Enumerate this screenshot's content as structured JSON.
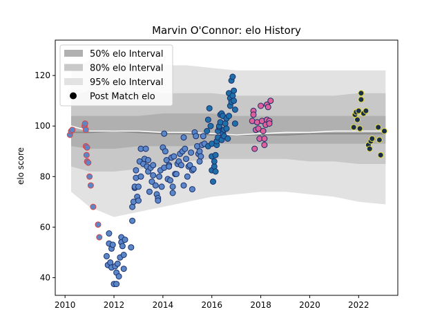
{
  "chart_data": {
    "type": "scatter",
    "title": "Marvin O'Connor: elo History",
    "xlabel": "",
    "ylabel": "elo score",
    "xlim": [
      2009.6,
      2023.6
    ],
    "ylim": [
      33,
      134
    ],
    "xticks": [
      2010,
      2012,
      2014,
      2016,
      2018,
      2020,
      2022
    ],
    "yticks": [
      40,
      60,
      80,
      100,
      120
    ],
    "grid": false,
    "legend_position": "top-left",
    "legend": [
      {
        "label": "50% elo Interval",
        "kind": "band50"
      },
      {
        "label": "80% elo Interval",
        "kind": "band80"
      },
      {
        "label": "95% elo Interval",
        "kind": "band95"
      },
      {
        "label": "Post Match elo",
        "kind": "marker"
      }
    ],
    "colors": {
      "band50": "#b0b0b0",
      "band80": "#c8c8c8",
      "band95": "#e2e2e2",
      "median_line": "#888888",
      "mean_line": "#ffffff",
      "marker_fill": "#5b87c8",
      "marker_fill_2016": "#1f6fa8",
      "marker_fill_2018": "#e0609a",
      "marker_fill_2022": "#1a2e4a"
    },
    "bands": {
      "x": [
        2010.25,
        2011,
        2012,
        2013,
        2014,
        2015,
        2016,
        2017,
        2018,
        2019,
        2020,
        2021,
        2022,
        2023.1
      ],
      "p95_low": [
        74,
        68,
        64,
        66,
        68,
        70,
        72,
        73,
        74,
        74,
        73,
        72,
        70,
        69
      ],
      "p80_low": [
        84,
        82,
        82,
        83,
        84,
        86,
        87,
        87,
        87,
        87,
        86,
        86,
        85,
        85
      ],
      "p50_low": [
        92,
        91,
        91,
        92,
        92,
        92,
        93,
        93,
        93,
        93,
        93,
        93,
        93,
        93
      ],
      "p50_high": [
        104,
        104,
        104,
        104,
        105,
        105,
        105,
        104,
        104,
        104,
        104,
        104,
        104,
        104
      ],
      "p80_high": [
        112,
        114,
        114,
        114,
        113,
        113,
        113,
        112,
        112,
        112,
        112,
        112,
        113,
        113
      ],
      "p95_high": [
        123,
        126,
        126,
        125,
        124,
        124,
        123,
        122,
        122,
        122,
        122,
        122,
        122,
        122
      ],
      "median": [
        97.5,
        97.5,
        98,
        97.5,
        97,
        97,
        96.5,
        96.5,
        96.5,
        96.5,
        97,
        97,
        97,
        97
      ],
      "mean": [
        100,
        98,
        98,
        98,
        97.5,
        97.5,
        97,
        96.5,
        97,
        97.5,
        97.5,
        98,
        98,
        98
      ]
    },
    "series": [
      {
        "group": "2010",
        "edge": "#e04040",
        "fill": "#5b87c8",
        "points": [
          [
            2010.2,
            96.5
          ],
          [
            2010.25,
            98.0
          ],
          [
            2010.3,
            98.5
          ],
          [
            2010.8,
            100.0
          ],
          [
            2010.82,
            101.0
          ],
          [
            2010.85,
            98.5
          ],
          [
            2010.85,
            92.0
          ],
          [
            2010.9,
            91.5
          ],
          [
            2010.88,
            88.5
          ],
          [
            2010.9,
            86.0
          ],
          [
            2010.95,
            85.5
          ],
          [
            2011.0,
            80.0
          ],
          [
            2011.05,
            76.5
          ],
          [
            2011.15,
            68.0
          ],
          [
            2011.35,
            61.0
          ],
          [
            2011.4,
            56.0
          ]
        ]
      },
      {
        "group": "2012-2015",
        "edge": "#1a2e6a",
        "fill": "#5b87c8",
        "points": [
          [
            2011.7,
            48.5
          ],
          [
            2011.75,
            45.0
          ],
          [
            2011.8,
            57.5
          ],
          [
            2011.8,
            53.5
          ],
          [
            2011.85,
            46.0
          ],
          [
            2011.9,
            44.0
          ],
          [
            2011.9,
            51.5
          ],
          [
            2011.95,
            53.0
          ],
          [
            2012.0,
            37.5
          ],
          [
            2012.05,
            44.5
          ],
          [
            2012.1,
            37.5
          ],
          [
            2012.1,
            42.0
          ],
          [
            2012.15,
            45.5
          ],
          [
            2012.2,
            40.5
          ],
          [
            2012.25,
            48.0
          ],
          [
            2012.3,
            56.0
          ],
          [
            2012.3,
            54.0
          ],
          [
            2012.35,
            52.5
          ],
          [
            2012.4,
            49.0
          ],
          [
            2012.4,
            43.5
          ],
          [
            2012.45,
            55.0
          ],
          [
            2012.7,
            52.0
          ],
          [
            2012.75,
            62.5
          ],
          [
            2012.75,
            68.0
          ],
          [
            2012.8,
            70.0
          ],
          [
            2012.85,
            75.5
          ],
          [
            2012.85,
            76.0
          ],
          [
            2012.9,
            82.5
          ],
          [
            2012.9,
            79.5
          ],
          [
            2012.95,
            72.0
          ],
          [
            2013.0,
            70.5
          ],
          [
            2013.0,
            76.0
          ],
          [
            2013.05,
            86.0
          ],
          [
            2013.1,
            91.0
          ],
          [
            2013.1,
            80.0
          ],
          [
            2013.2,
            85.0
          ],
          [
            2013.25,
            87.0
          ],
          [
            2013.3,
            91.0
          ],
          [
            2013.35,
            84.0
          ],
          [
            2013.4,
            86.5
          ],
          [
            2013.4,
            82.0
          ],
          [
            2013.45,
            74.0
          ],
          [
            2013.5,
            83.5
          ],
          [
            2013.55,
            78.0
          ],
          [
            2013.6,
            80.5
          ],
          [
            2013.6,
            84.5
          ],
          [
            2013.7,
            76.5
          ],
          [
            2013.75,
            73.0
          ],
          [
            2013.8,
            71.5
          ],
          [
            2013.8,
            70.5
          ],
          [
            2013.85,
            80.0
          ],
          [
            2013.9,
            82.5
          ],
          [
            2013.95,
            76.0
          ],
          [
            2014.0,
            91.5
          ],
          [
            2014.05,
            83.5
          ],
          [
            2014.05,
            97.0
          ],
          [
            2014.1,
            90.0
          ],
          [
            2014.15,
            86.5
          ],
          [
            2014.2,
            79.0
          ],
          [
            2014.25,
            84.5
          ],
          [
            2014.25,
            84.0
          ],
          [
            2014.3,
            78.5
          ],
          [
            2014.35,
            87.5
          ],
          [
            2014.4,
            73.5
          ],
          [
            2014.4,
            76.0
          ],
          [
            2014.45,
            88.0
          ],
          [
            2014.5,
            81.0
          ],
          [
            2014.55,
            81.0
          ],
          [
            2014.6,
            85.0
          ],
          [
            2014.65,
            86.0
          ],
          [
            2014.7,
            89.0
          ],
          [
            2014.75,
            84.5
          ],
          [
            2014.8,
            90.0
          ],
          [
            2014.85,
            76.5
          ],
          [
            2014.85,
            95.5
          ],
          [
            2014.9,
            91.0
          ],
          [
            2014.95,
            87.0
          ],
          [
            2015.0,
            80.0
          ],
          [
            2015.05,
            84.0
          ],
          [
            2015.1,
            84.5
          ],
          [
            2015.15,
            89.5
          ],
          [
            2015.2,
            82.5
          ],
          [
            2015.2,
            75.0
          ],
          [
            2015.25,
            83.0
          ],
          [
            2015.3,
            97.5
          ],
          [
            2015.35,
            96.0
          ],
          [
            2015.4,
            92.0
          ],
          [
            2015.45,
            89.0
          ],
          [
            2015.5,
            86.0
          ],
          [
            2015.5,
            90.0
          ],
          [
            2015.55,
            88.0
          ],
          [
            2015.6,
            92.5
          ],
          [
            2015.65,
            96.0
          ],
          [
            2015.7,
            93.0
          ]
        ]
      },
      {
        "group": "2016",
        "edge": "#1a2e6a",
        "fill": "#1f6fa8",
        "points": [
          [
            2015.8,
            98.0
          ],
          [
            2015.85,
            102.5
          ],
          [
            2015.85,
            92.0
          ],
          [
            2015.9,
            107.0
          ],
          [
            2015.95,
            100.0
          ],
          [
            2016.0,
            93.0
          ],
          [
            2016.0,
            88.0
          ],
          [
            2016.0,
            82.5
          ],
          [
            2016.05,
            78.0
          ],
          [
            2016.1,
            84.0
          ],
          [
            2016.1,
            86.0
          ],
          [
            2016.15,
            82.0
          ],
          [
            2016.15,
            88.5
          ],
          [
            2016.2,
            92.5
          ],
          [
            2016.2,
            94.0
          ],
          [
            2016.25,
            95.5
          ],
          [
            2016.25,
            98.0
          ],
          [
            2016.3,
            99.5
          ],
          [
            2016.3,
            100.0
          ],
          [
            2016.35,
            104.5
          ],
          [
            2016.35,
            101.5
          ],
          [
            2016.4,
            105.0
          ],
          [
            2016.4,
            94.5
          ],
          [
            2016.45,
            97.0
          ],
          [
            2016.45,
            104.0
          ],
          [
            2016.5,
            96.0
          ],
          [
            2016.5,
            98.5
          ],
          [
            2016.55,
            101.0
          ],
          [
            2016.6,
            103.0
          ],
          [
            2016.6,
            99.0
          ],
          [
            2016.65,
            95.0
          ],
          [
            2016.7,
            104.0
          ],
          [
            2016.7,
            113.0
          ],
          [
            2016.75,
            108.0
          ],
          [
            2016.75,
            111.0
          ],
          [
            2016.8,
            109.5
          ],
          [
            2016.8,
            118.0
          ],
          [
            2016.85,
            119.5
          ],
          [
            2016.85,
            112.0
          ],
          [
            2016.9,
            114.0
          ],
          [
            2016.9,
            110.0
          ],
          [
            2016.95,
            106.5
          ],
          [
            2016.95,
            101.0
          ]
        ]
      },
      {
        "group": "2018",
        "edge": "#1a2e6a",
        "fill": "#e0609a",
        "points": [
          [
            2017.65,
            102.0
          ],
          [
            2017.7,
            106.0
          ],
          [
            2017.7,
            104.5
          ],
          [
            2017.75,
            91.0
          ],
          [
            2017.8,
            98.5
          ],
          [
            2017.85,
            101.5
          ],
          [
            2017.9,
            99.0
          ],
          [
            2017.95,
            95.0
          ],
          [
            2018.0,
            108.0
          ],
          [
            2018.05,
            102.0
          ],
          [
            2018.1,
            98.0
          ],
          [
            2018.15,
            92.5
          ],
          [
            2018.15,
            95.0
          ],
          [
            2018.2,
            100.5
          ],
          [
            2018.25,
            102.5
          ],
          [
            2018.25,
            108.5
          ],
          [
            2018.3,
            107.5
          ],
          [
            2018.35,
            102.0
          ],
          [
            2018.35,
            101.0
          ],
          [
            2018.4,
            110.0
          ]
        ]
      },
      {
        "group": "2022",
        "edge": "#e8e040",
        "fill": "#1a2e4a",
        "points": [
          [
            2021.8,
            99.5
          ],
          [
            2021.85,
            104.5
          ],
          [
            2021.9,
            105.5
          ],
          [
            2021.95,
            102.5
          ],
          [
            2022.0,
            106.0
          ],
          [
            2022.05,
            99.0
          ],
          [
            2022.1,
            113.0
          ],
          [
            2022.1,
            110.5
          ],
          [
            2022.2,
            105.0
          ],
          [
            2022.3,
            106.0
          ],
          [
            2022.4,
            92.5
          ],
          [
            2022.45,
            91.0
          ],
          [
            2022.5,
            94.0
          ],
          [
            2022.55,
            95.0
          ],
          [
            2022.8,
            99.5
          ],
          [
            2022.85,
            94.5
          ],
          [
            2022.9,
            88.5
          ],
          [
            2023.05,
            98.0
          ]
        ]
      }
    ]
  }
}
